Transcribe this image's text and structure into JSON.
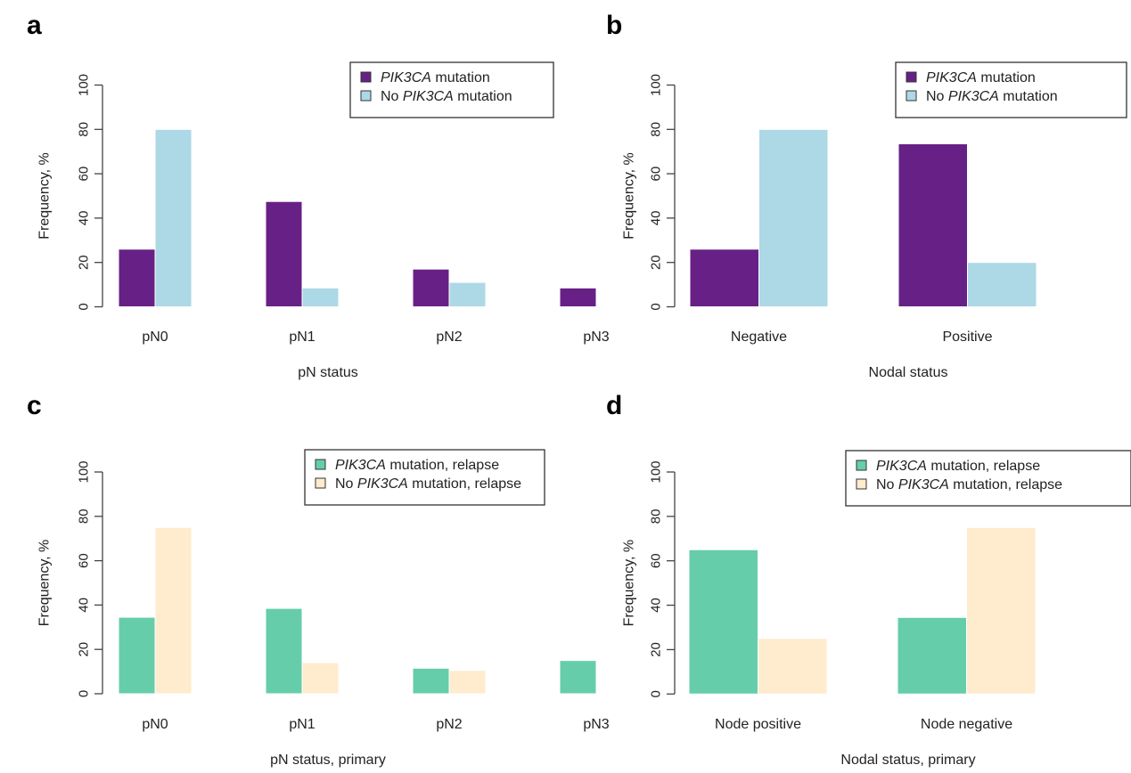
{
  "figure": {
    "colors": {
      "pik3ca": "#672186",
      "no_pik3ca": "#add8e6",
      "pik3ca_relapse": "#66cdaa",
      "no_pik3ca_relapse": "#ffebcd"
    }
  },
  "chart_data": [
    {
      "panel": "a",
      "type": "bar",
      "title": "",
      "xlabel": "pN status",
      "ylabel": "Frequency, %",
      "ylim": [
        0,
        100
      ],
      "yticks": [
        "0",
        "20",
        "40",
        "60",
        "80",
        "100"
      ],
      "categories": [
        "pN0",
        "pN1",
        "pN2",
        "pN3"
      ],
      "legend_position": "top-right",
      "series": [
        {
          "name": "PIK3CA mutation",
          "name_italic": "PIK3CA",
          "name_prefix": "",
          "name_suffix": " mutation",
          "color": "#672186",
          "values": [
            26,
            47.5,
            17,
            8.5
          ]
        },
        {
          "name": "No PIK3CA mutation",
          "name_italic": "PIK3CA",
          "name_prefix": "No ",
          "name_suffix": " mutation",
          "color": "#add8e6",
          "values": [
            80,
            8.5,
            11,
            0
          ]
        }
      ]
    },
    {
      "panel": "b",
      "type": "bar",
      "title": "",
      "xlabel": "Nodal status",
      "ylabel": "Frequency, %",
      "ylim": [
        0,
        100
      ],
      "yticks": [
        "0",
        "20",
        "40",
        "60",
        "80",
        "100"
      ],
      "categories": [
        "Negative",
        "Positive"
      ],
      "legend_position": "top-right",
      "series": [
        {
          "name": "PIK3CA mutation",
          "name_italic": "PIK3CA",
          "name_prefix": "",
          "name_suffix": " mutation",
          "color": "#672186",
          "values": [
            26,
            73.5
          ]
        },
        {
          "name": "No PIK3CA mutation",
          "name_italic": "PIK3CA",
          "name_prefix": "No ",
          "name_suffix": " mutation",
          "color": "#add8e6",
          "values": [
            80,
            20
          ]
        }
      ]
    },
    {
      "panel": "c",
      "type": "bar",
      "title": "",
      "xlabel": "pN status, primary",
      "ylabel": "Frequency, %",
      "ylim": [
        0,
        100
      ],
      "yticks": [
        "0",
        "20",
        "40",
        "60",
        "80",
        "100"
      ],
      "categories": [
        "pN0",
        "pN1",
        "pN2",
        "pN3"
      ],
      "legend_position": "top-right",
      "series": [
        {
          "name": "PIK3CA mutation, relapse",
          "name_italic": "PIK3CA",
          "name_prefix": "",
          "name_suffix": " mutation, relapse",
          "color": "#66cdaa",
          "values": [
            34.5,
            38.5,
            11.5,
            15
          ]
        },
        {
          "name": "No PIK3CA mutation, relapse",
          "name_italic": "PIK3CA",
          "name_prefix": "No ",
          "name_suffix": " mutation, relapse",
          "color": "#ffebcd",
          "values": [
            75,
            14,
            10.5,
            0
          ]
        }
      ]
    },
    {
      "panel": "d",
      "type": "bar",
      "title": "",
      "xlabel": "Nodal status, primary",
      "ylabel": "Frequency, %",
      "ylim": [
        0,
        100
      ],
      "yticks": [
        "0",
        "20",
        "40",
        "60",
        "80",
        "100"
      ],
      "categories": [
        "Node positive",
        "Node negative"
      ],
      "legend_position": "top-right",
      "series": [
        {
          "name": "PIK3CA mutation, relapse",
          "name_italic": "PIK3CA",
          "name_prefix": "",
          "name_suffix": " mutation, relapse",
          "color": "#66cdaa",
          "values": [
            65,
            34.5
          ]
        },
        {
          "name": "No PIK3CA mutation, relapse",
          "name_italic": "PIK3CA",
          "name_prefix": "No ",
          "name_suffix": " mutation, relapse",
          "color": "#ffebcd",
          "values": [
            25,
            75
          ]
        }
      ]
    }
  ]
}
